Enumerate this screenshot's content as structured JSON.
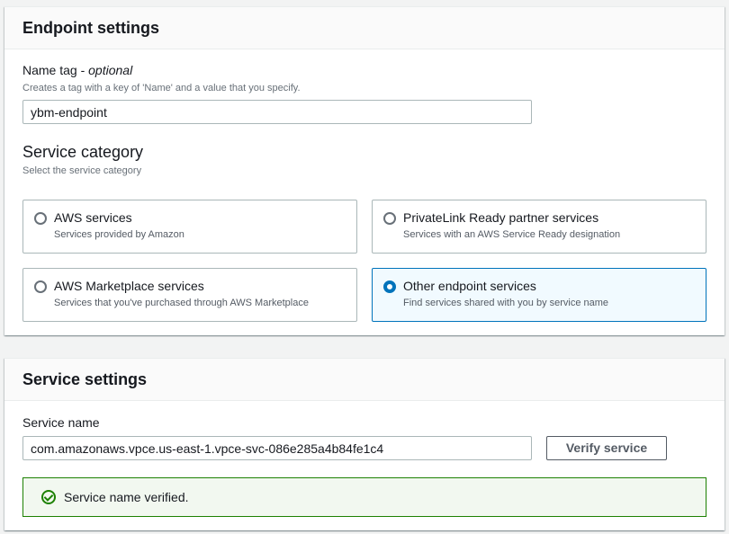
{
  "endpoint_settings": {
    "title": "Endpoint settings",
    "name_tag": {
      "label": "Name tag - ",
      "label_optional": "optional",
      "description": "Creates a tag with a key of 'Name' and a value that you specify.",
      "value": "ybm-endpoint"
    },
    "service_category": {
      "title": "Service category",
      "description": "Select the service category",
      "options": [
        {
          "title": "AWS services",
          "description": "Services provided by Amazon",
          "selected": false
        },
        {
          "title": "PrivateLink Ready partner services",
          "description": "Services with an AWS Service Ready designation",
          "selected": false
        },
        {
          "title": "AWS Marketplace services",
          "description": "Services that you've purchased through AWS Marketplace",
          "selected": false
        },
        {
          "title": "Other endpoint services",
          "description": "Find services shared with you by service name",
          "selected": true
        }
      ]
    }
  },
  "service_settings": {
    "title": "Service settings",
    "service_name_label": "Service name",
    "service_name_value": "com.amazonaws.vpce.us-east-1.vpce-svc-086e285a4b84fe1c4",
    "verify_button": "Verify service",
    "alert": {
      "text": "Service name verified.",
      "icon": "check-circle-icon",
      "color": "#1d8102"
    }
  },
  "colors": {
    "accent": "#0073bb",
    "success": "#1d8102"
  }
}
